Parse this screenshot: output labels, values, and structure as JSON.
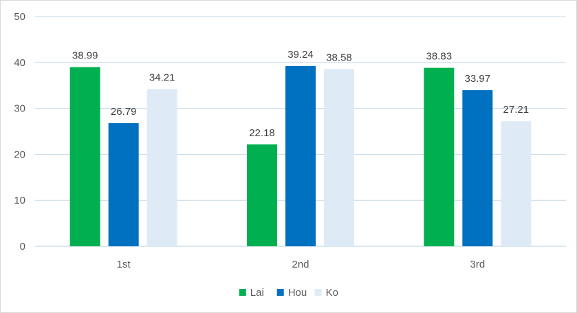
{
  "chart_data": {
    "type": "bar",
    "categories": [
      "1st",
      "2nd",
      "3rd"
    ],
    "series": [
      {
        "name": "Lai",
        "values": [
          38.99,
          22.18,
          38.83
        ],
        "color": "#00b050"
      },
      {
        "name": "Hou",
        "values": [
          26.79,
          39.24,
          33.97
        ],
        "color": "#0070c0"
      },
      {
        "name": "Ko",
        "values": [
          34.21,
          38.58,
          27.21
        ],
        "color": "#deebf7"
      }
    ],
    "title": "",
    "xlabel": "",
    "ylabel": "",
    "ylim": [
      0,
      50
    ],
    "yticks": [
      0,
      10,
      20,
      30,
      40,
      50
    ],
    "grid": true,
    "legend_position": "bottom"
  }
}
